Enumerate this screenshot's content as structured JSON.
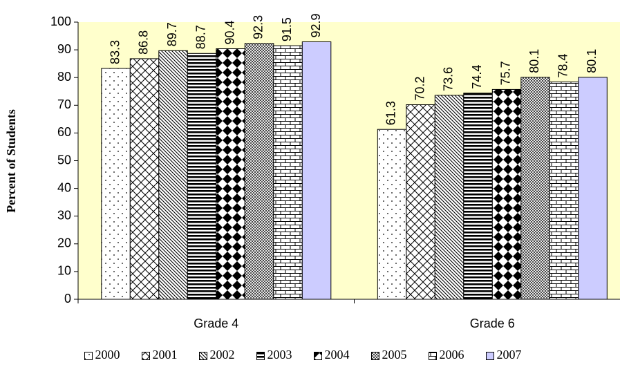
{
  "chart_data": {
    "type": "bar",
    "title": "",
    "xlabel": "",
    "ylabel": "Percent of Students",
    "ylim": [
      0,
      100
    ],
    "yticks": [
      0,
      10,
      20,
      30,
      40,
      50,
      60,
      70,
      80,
      90,
      100
    ],
    "categories": [
      "Grade 4",
      "Grade 6"
    ],
    "series": [
      {
        "name": "2000",
        "values": [
          83.3,
          61.3
        ],
        "pattern": "dots"
      },
      {
        "name": "2001",
        "values": [
          86.8,
          70.2
        ],
        "pattern": "crosshatch"
      },
      {
        "name": "2002",
        "values": [
          89.7,
          73.6
        ],
        "pattern": "diagonal"
      },
      {
        "name": "2003",
        "values": [
          88.7,
          74.4
        ],
        "pattern": "horizontal"
      },
      {
        "name": "2004",
        "values": [
          90.4,
          75.7
        ],
        "pattern": "diamonds"
      },
      {
        "name": "2005",
        "values": [
          92.3,
          80.1
        ],
        "pattern": "dense-dots"
      },
      {
        "name": "2006",
        "values": [
          91.5,
          78.4
        ],
        "pattern": "bricks"
      },
      {
        "name": "2007",
        "values": [
          92.9,
          80.1
        ],
        "pattern": "solid"
      }
    ],
    "colors": {
      "plot_background": "#FFFFCC",
      "series_2007": "#CCCCFF",
      "bar_stroke": "#000000"
    },
    "legend_position": "bottom",
    "grid": false
  }
}
